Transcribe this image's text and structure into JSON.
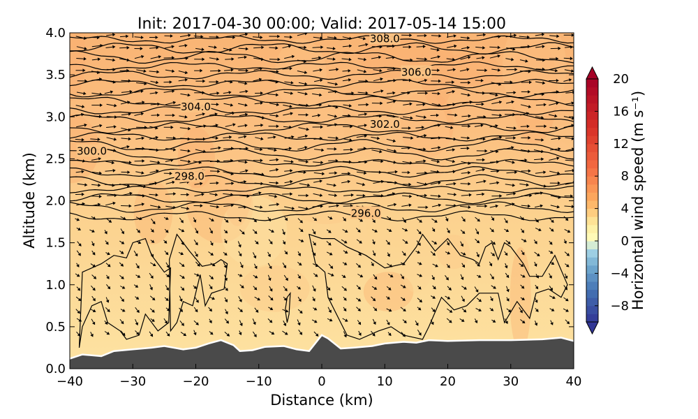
{
  "chart_data": {
    "type": "heatmap",
    "title": "Init: 2017-04-30 00:00; Valid: 2017-05-14 15:00",
    "xlabel": "Distance (km)",
    "ylabel": "Altitude (km)",
    "xlim": [
      -40,
      40
    ],
    "ylim": [
      0.0,
      4.0
    ],
    "x_ticks": [
      "−40",
      "−30",
      "−20",
      "−10",
      "0",
      "10",
      "20",
      "30",
      "40"
    ],
    "y_ticks": [
      "0.0",
      "0.5",
      "1.0",
      "1.5",
      "2.0",
      "2.5",
      "3.0",
      "3.5",
      "4.0"
    ],
    "x_tick_values": [
      -40,
      -30,
      -20,
      -10,
      0,
      10,
      20,
      30,
      40
    ],
    "y_tick_values": [
      0.0,
      0.5,
      1.0,
      1.5,
      2.0,
      2.5,
      3.0,
      3.5,
      4.0
    ],
    "colorbar": {
      "label": "Horizontal wind speed (m s⁻¹)",
      "range": [
        -10,
        20
      ],
      "ticks": [
        "−8",
        "−4",
        "0",
        "4",
        "8",
        "12",
        "16",
        "20"
      ],
      "tick_values": [
        -8,
        -4,
        0,
        4,
        8,
        12,
        16,
        20
      ],
      "colormap": "RdYlBu_r",
      "extend": "both"
    },
    "contour_labels": [
      {
        "text": "308.0",
        "x": 10.0,
        "y": 3.93
      },
      {
        "text": "306.0",
        "x": 15.0,
        "y": 3.53
      },
      {
        "text": "304.0",
        "x": -20.0,
        "y": 3.12
      },
      {
        "text": "302.0",
        "x": 10.0,
        "y": 2.91
      },
      {
        "text": "300.0",
        "x": -36.5,
        "y": 2.59
      },
      {
        "text": "298.0",
        "x": -21.0,
        "y": 2.29
      },
      {
        "text": "296.0",
        "x": 7.0,
        "y": 1.85
      }
    ],
    "terrain_color": "#4a4a4a",
    "field_color_low": "#fde6a4",
    "field_color_high": "#f9b474"
  }
}
